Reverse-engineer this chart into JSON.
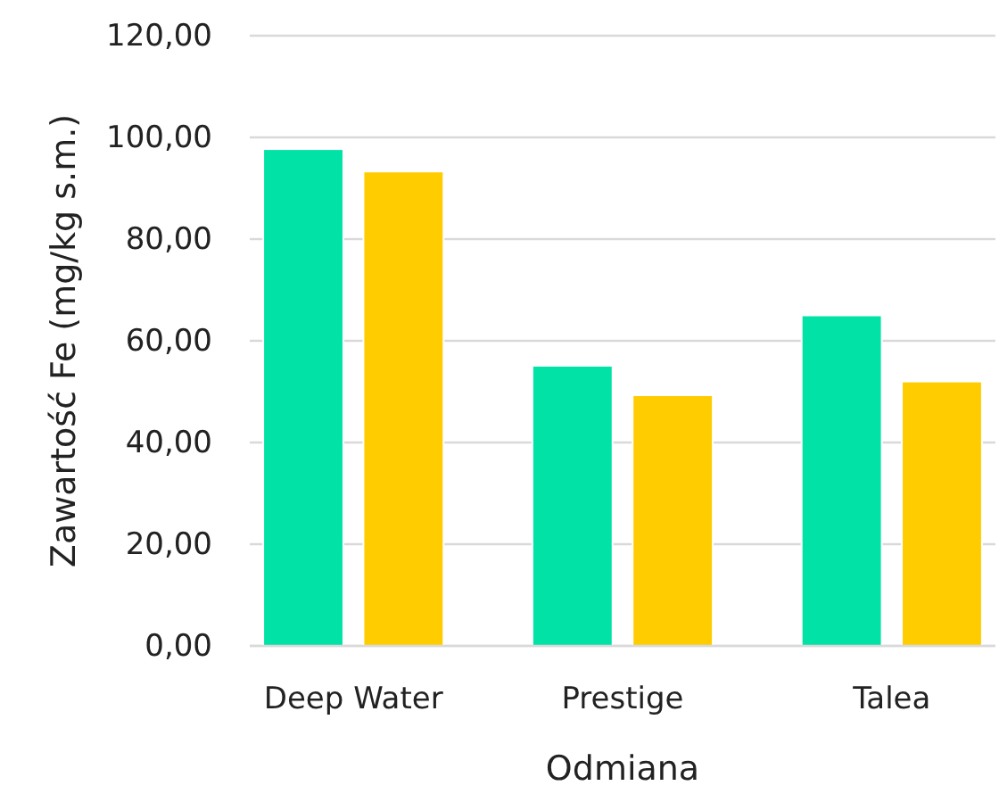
{
  "chart_data": {
    "type": "bar",
    "xlabel": "Odmiana",
    "ylabel": "Zawartość Fe (mg/kg s.m.)",
    "categories": [
      "Deep Water",
      "Prestige",
      "Talea"
    ],
    "series": [
      {
        "color": "#00e2a6",
        "values": [
          97.7,
          55.1,
          65.0
        ]
      },
      {
        "color": "#ffcc00",
        "values": [
          93.3,
          49.3,
          52.0
        ]
      }
    ],
    "ylim": [
      0,
      120
    ],
    "yticks": [
      {
        "value": 0,
        "label": "0,00"
      },
      {
        "value": 20,
        "label": "20,00"
      },
      {
        "value": 40,
        "label": "40,00"
      },
      {
        "value": 60,
        "label": "60,00"
      },
      {
        "value": 80,
        "label": "80,00"
      },
      {
        "value": 100,
        "label": "100,00"
      },
      {
        "value": 120,
        "label": "120,00"
      }
    ],
    "grid": "y",
    "legend": false
  }
}
